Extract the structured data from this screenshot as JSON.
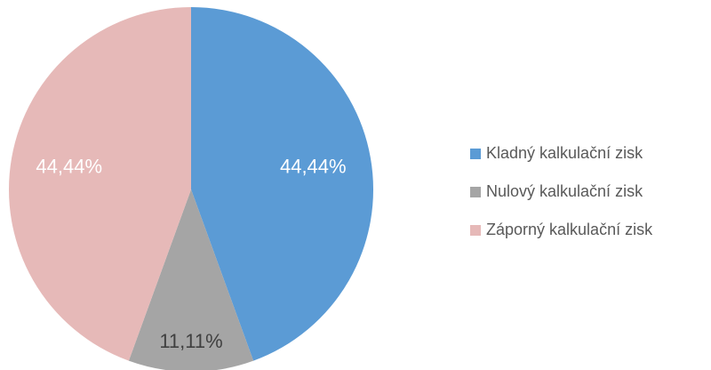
{
  "chart_data": {
    "type": "pie",
    "categories": [
      "Kladný kalkulační zisk",
      "Nulový kalkulační zisk",
      "Záporný kalkulační zisk"
    ],
    "values": [
      44.44,
      11.11,
      44.44
    ],
    "value_labels": [
      "44,44%",
      "11,11%",
      "44,44%"
    ],
    "colors": [
      "#5b9bd5",
      "#a5a5a5",
      "#e6b9b8"
    ],
    "legend": "right"
  }
}
